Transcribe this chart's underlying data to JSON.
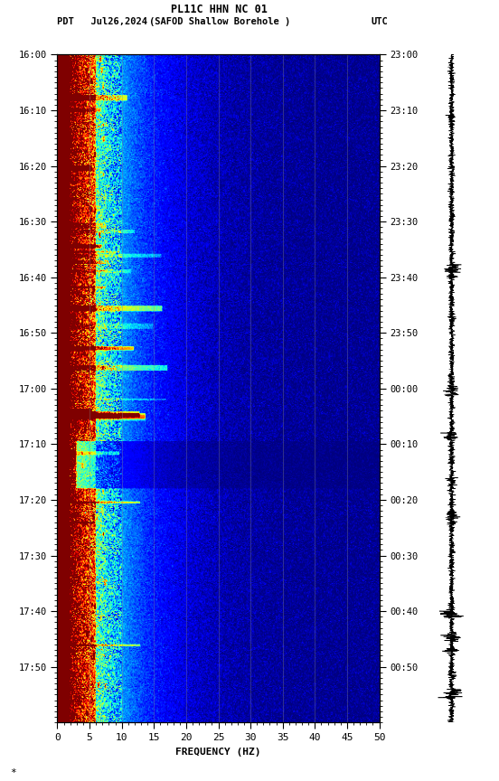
{
  "title_line1": "PL11C HHN NC 01",
  "title_line2_left": "PDT   Jul26,2024",
  "title_line2_center": "(SAFOD Shallow Borehole )",
  "title_line2_right": "UTC",
  "xlabel": "FREQUENCY (HZ)",
  "freq_min": 0,
  "freq_max": 50,
  "freq_ticks": [
    0,
    5,
    10,
    15,
    20,
    25,
    30,
    35,
    40,
    45,
    50
  ],
  "time_labels_left": [
    "16:00",
    "16:10",
    "16:20",
    "16:30",
    "16:40",
    "16:50",
    "17:00",
    "17:10",
    "17:20",
    "17:30",
    "17:40",
    "17:50"
  ],
  "time_labels_right": [
    "23:00",
    "23:10",
    "23:20",
    "23:30",
    "23:40",
    "23:50",
    "00:00",
    "00:10",
    "00:20",
    "00:30",
    "00:40",
    "00:50"
  ],
  "colormap": "jet",
  "vline_color": "#888888",
  "vline_positions": [
    5,
    10,
    15,
    20,
    25,
    30,
    35,
    40,
    45
  ],
  "fig_width": 5.52,
  "fig_height": 8.64,
  "dpi": 100
}
